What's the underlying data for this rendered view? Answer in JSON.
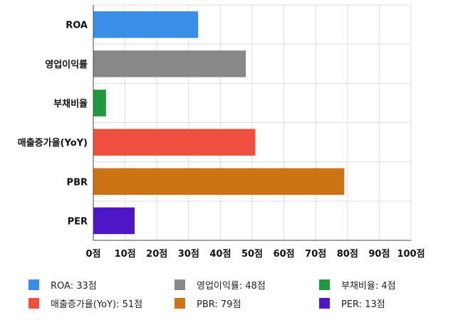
{
  "chart_data": {
    "type": "bar",
    "orientation": "horizontal",
    "categories": [
      "ROA",
      "영업이익률",
      "부채비율",
      "매출증가율(YoY)",
      "PBR",
      "PER"
    ],
    "values": [
      33,
      48,
      4,
      51,
      79,
      13
    ],
    "colors": [
      "#3b8ee8",
      "#888888",
      "#1e9a3c",
      "#ee4f3e",
      "#cc7415",
      "#4d17c7"
    ],
    "xlim": [
      0,
      100
    ],
    "xticks": [
      "0점",
      "10점",
      "20점",
      "30점",
      "40점",
      "50점",
      "60점",
      "70점",
      "80점",
      "90점",
      "100점"
    ],
    "grid": true,
    "legend": {
      "placement": "bottom",
      "items": [
        {
          "label": "ROA: 33점",
          "color": "#3b8ee8"
        },
        {
          "label": "영업이익률: 48점",
          "color": "#888888"
        },
        {
          "label": "부채비율: 4점",
          "color": "#1e9a3c"
        },
        {
          "label": "매출증가율(YoY): 51점",
          "color": "#ee4f3e"
        },
        {
          "label": "PBR: 79점",
          "color": "#cc7415"
        },
        {
          "label": "PER: 13점",
          "color": "#4d17c7"
        }
      ]
    }
  }
}
